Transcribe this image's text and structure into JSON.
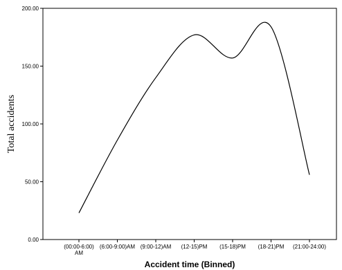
{
  "chart_data": {
    "type": "line",
    "categories": [
      [
        "(00:00-6:00)",
        "AM"
      ],
      [
        "(6:00-9:00)AM"
      ],
      [
        "(9:00-12)AM"
      ],
      [
        "(12-15)PM"
      ],
      [
        "(15-18)PM"
      ],
      [
        "(18-21)PM"
      ],
      [
        "(21:00-24:00)"
      ]
    ],
    "series": [
      {
        "values": [
          23,
          86,
          140,
          177,
          157,
          184,
          56
        ]
      }
    ],
    "xlabel": "Accident time (Binned)",
    "ylabel": "Total accidents",
    "ylim": [
      0,
      200
    ],
    "yticks": [
      "0.00",
      "50.00",
      "100.00",
      "150.00",
      "200.00"
    ],
    "grid": false,
    "line_color": "#000000",
    "frame_color": "#000000"
  }
}
